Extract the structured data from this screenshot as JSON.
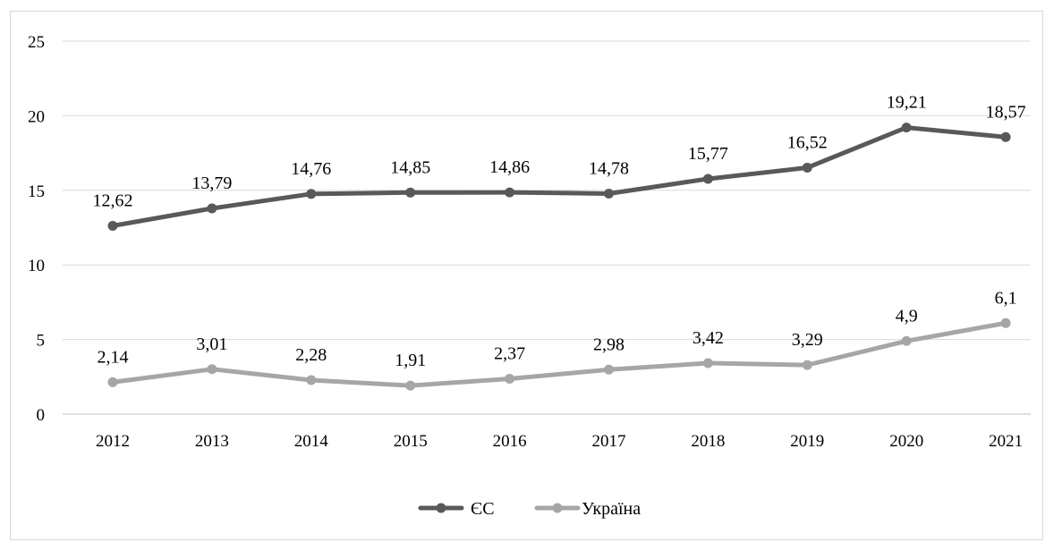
{
  "chart_data": {
    "type": "line",
    "title": "",
    "xlabel": "",
    "ylabel": "",
    "x": [
      "2012",
      "2013",
      "2014",
      "2015",
      "2016",
      "2017",
      "2018",
      "2019",
      "2020",
      "2021"
    ],
    "ylim": [
      0,
      25
    ],
    "yticks": [
      0,
      5,
      10,
      15,
      20,
      25
    ],
    "grid": "horizontal",
    "legend_position": "bottom",
    "series": [
      {
        "name": "ЄС",
        "color": "#595959",
        "values": [
          12.62,
          13.79,
          14.76,
          14.85,
          14.86,
          14.78,
          15.77,
          16.52,
          19.21,
          18.57
        ],
        "labels": [
          "12,62",
          "13,79",
          "14,76",
          "14,85",
          "14,86",
          "14,78",
          "15,77",
          "16,52",
          "19,21",
          "18,57"
        ]
      },
      {
        "name": "Україна",
        "color": "#a6a6a6",
        "values": [
          2.14,
          3.01,
          2.28,
          1.91,
          2.37,
          2.98,
          3.42,
          3.29,
          4.9,
          6.1
        ],
        "labels": [
          "2,14",
          "3,01",
          "2,28",
          "1,91",
          "2,37",
          "2,98",
          "3,42",
          "3,29",
          "4,9",
          "6,1"
        ]
      }
    ]
  }
}
